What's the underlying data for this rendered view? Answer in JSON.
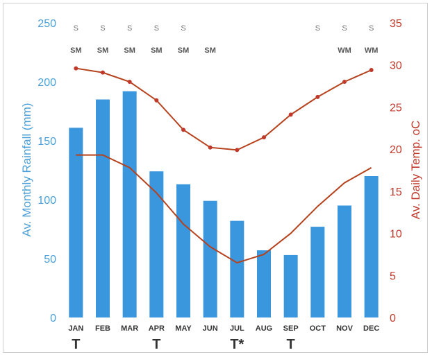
{
  "chart_data": {
    "type": "bar",
    "categories": [
      "JAN",
      "FEB",
      "MAR",
      "APR",
      "MAY",
      "JUN",
      "JUL",
      "AUG",
      "SEP",
      "OCT",
      "NOV",
      "DEC"
    ],
    "rainfall": [
      161,
      185,
      192,
      124,
      113,
      99,
      82,
      57,
      53,
      77,
      95,
      120
    ],
    "temp_max": [
      29.6,
      29.1,
      28.0,
      25.8,
      22.3,
      20.2,
      19.9,
      21.4,
      24.1,
      26.2,
      28.0,
      29.4
    ],
    "temp_min": [
      19.3,
      19.3,
      17.8,
      14.8,
      11.1,
      8.4,
      6.5,
      7.5,
      10.0,
      13.2,
      16.0,
      17.8
    ],
    "ylabel_left": "Av. Monthly Rainfall (mm)",
    "ylabel_right": "Av. Daily Temp. oC",
    "ylim_left": [
      0,
      250
    ],
    "ylim_right": [
      0,
      35
    ],
    "yticks_left": [
      "0",
      "50",
      "100",
      "150",
      "200",
      "250"
    ],
    "yticks_right": [
      "0",
      "5",
      "10",
      "15",
      "20",
      "25",
      "30",
      "35"
    ],
    "season_s": [
      "S",
      "S",
      "S",
      "S",
      "S",
      "",
      "",
      "",
      "",
      "S",
      "S",
      "S"
    ],
    "season_m": [
      "SM",
      "SM",
      "SM",
      "SM",
      "SM",
      "SM",
      "",
      "",
      "",
      "",
      "WM",
      "WM"
    ],
    "bottom_marks": [
      "T",
      "",
      "",
      "T",
      "",
      "",
      "T*",
      "",
      "T",
      "",
      "",
      ""
    ],
    "colors": {
      "bars": "#3a96dd",
      "temp_line": "#b5421c",
      "temp_marker": "#c0392b",
      "left_axis": "#4a9fd8",
      "right_axis": "#c0392b"
    }
  }
}
